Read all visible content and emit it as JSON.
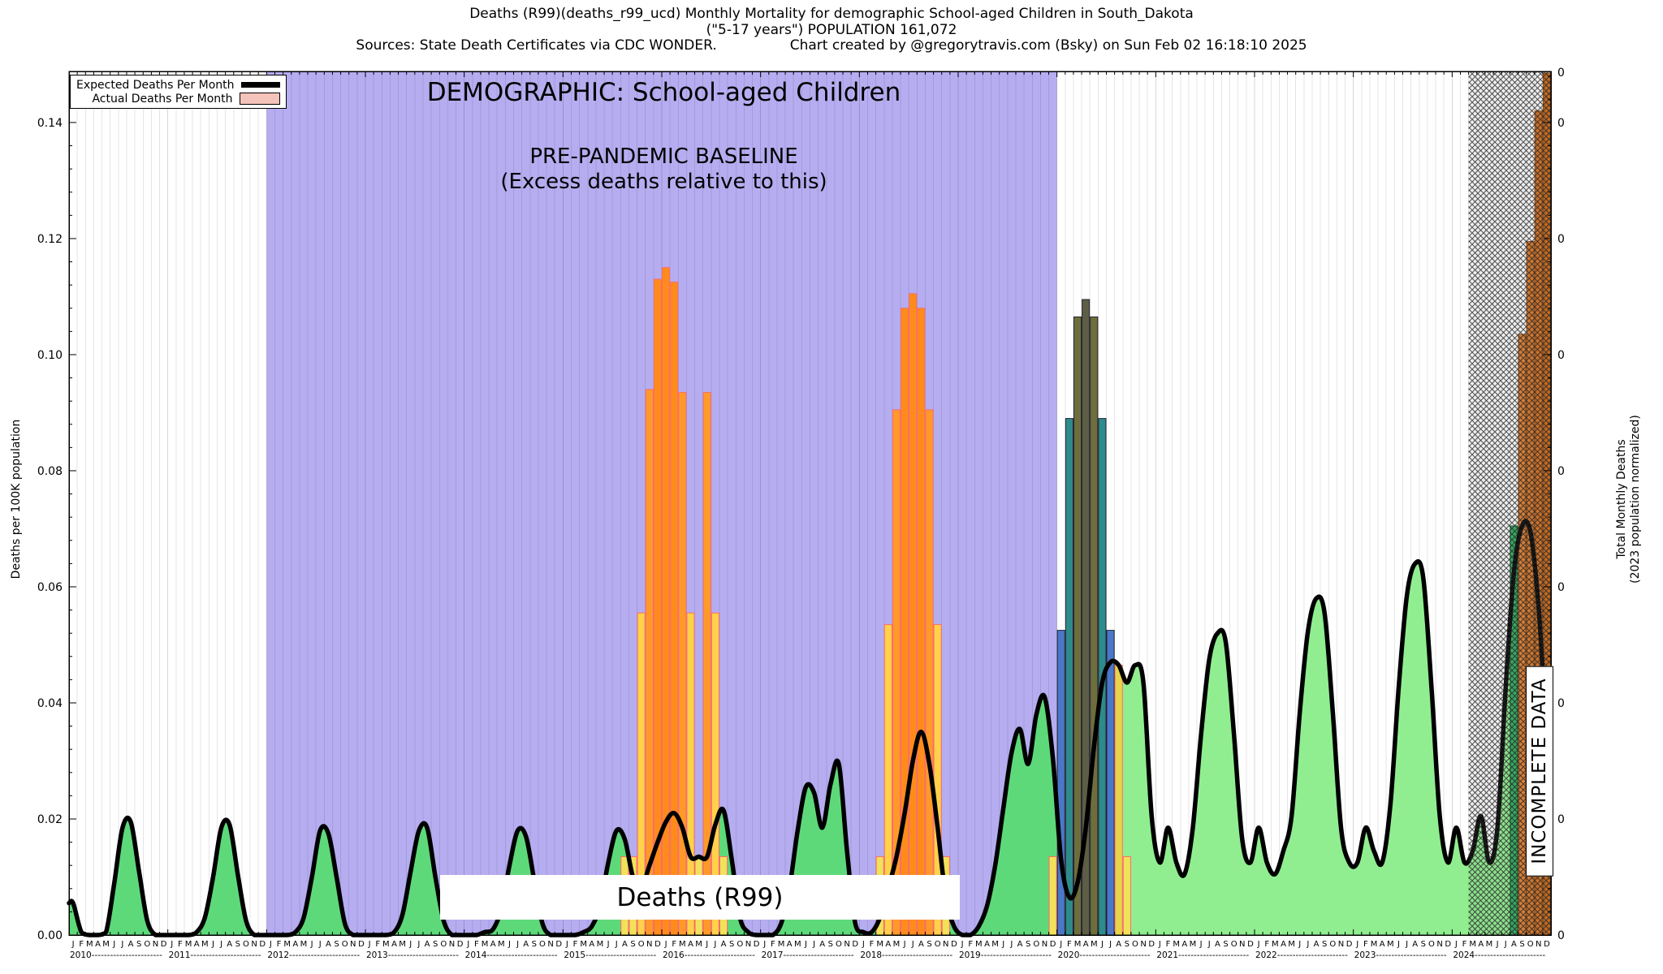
{
  "header": {
    "title_line1": "Deaths (R99)(deaths_r99_ucd) Monthly Mortality for demographic School-aged Children in South_Dakota",
    "title_line2": "(\"5-17 years\") POPULATION 161,072",
    "sources": "Sources: State Death Certificates via CDC WONDER.",
    "credit": "Chart created by @gregorytravis.com (Bsky) on Sun Feb 02 16:18:10 2025"
  },
  "legend": {
    "expected": "Expected Deaths Per Month",
    "actual": "Actual Deaths Per Month"
  },
  "axes": {
    "left_label": "Deaths per 100K population",
    "right_label_line1": "Total Monthly Deaths",
    "right_label_line2": "(2023 population normalized)",
    "left_ticks": [
      "0.00",
      "0.02",
      "0.04",
      "0.06",
      "0.08",
      "0.10",
      "0.12",
      "0.14"
    ],
    "right_tick_label": "0"
  },
  "annotations": {
    "demographic_title": "DEMOGRAPHIC: School-aged Children",
    "baseline_line1": "PRE-PANDEMIC BASELINE",
    "baseline_line2": "(Excess deaths relative to this)",
    "series_label": "Deaths (R99)",
    "incomplete_label": "INCOMPLETE DATA"
  },
  "colors": {
    "baseline_region": "#b6adf1",
    "expected_line": "#000000",
    "green_fill_early": "#5ed97a",
    "green_fill_late": "#90ee90",
    "legend_actual_swatch": "#f4c3ba",
    "bar_default_stroke": "#ff6a6a",
    "grid_minor": "rgba(0,0,0,0.10)",
    "grid_year": "rgba(0,0,0,0.16)"
  },
  "chart_data": {
    "type": "bar+line",
    "title": "Deaths (R99) Monthly Mortality, School-aged Children, South_Dakota",
    "ylabel": "Deaths per 100K population",
    "y_min": 0,
    "y_max": 0.1488,
    "y_ticks": [
      0,
      0.02,
      0.04,
      0.06,
      0.08,
      0.1,
      0.12,
      0.14
    ],
    "x_years": [
      2010,
      2011,
      2012,
      2013,
      2014,
      2015,
      2016,
      2017,
      2018,
      2019,
      2020,
      2021,
      2022,
      2023,
      2024
    ],
    "month_letters": [
      "J",
      "F",
      "M",
      "A",
      "M",
      "J",
      "J",
      "A",
      "S",
      "O",
      "N",
      "D"
    ],
    "baseline_region_months": {
      "start": 24,
      "end": 120
    },
    "incomplete_region_months": {
      "start": 170,
      "end": 180
    },
    "right_axis_all_zero": true,
    "series_names": {
      "line": "Expected Deaths Per Month",
      "bars": "Actual Deaths Per Month"
    },
    "expected_monthly": [
      0.0055,
      0.0005,
      0,
      0,
      0.0005,
      0.009,
      0.0185,
      0.0195,
      0.011,
      0.0025,
      0,
      0,
      0,
      0,
      0,
      0.0005,
      0.003,
      0.01,
      0.0185,
      0.019,
      0.0105,
      0.0025,
      0,
      0,
      0,
      0,
      0,
      0.0005,
      0.003,
      0.01,
      0.018,
      0.0175,
      0.01,
      0.002,
      0,
      0,
      0,
      0,
      0,
      0.0005,
      0.0035,
      0.011,
      0.018,
      0.0185,
      0.01,
      0.0025,
      0,
      0,
      0,
      0,
      0.0005,
      0.001,
      0.0045,
      0.012,
      0.018,
      0.017,
      0.0095,
      0.002,
      0,
      0,
      0,
      0,
      0.0005,
      0.0015,
      0.005,
      0.0125,
      0.018,
      0.0165,
      0.01,
      0.008,
      0.012,
      0.016,
      0.0195,
      0.021,
      0.0185,
      0.0135,
      0.0135,
      0.0135,
      0.019,
      0.0215,
      0.013,
      0.003,
      0.0005,
      0,
      0,
      0,
      0.002,
      0.008,
      0.018,
      0.0255,
      0.0245,
      0.0185,
      0.026,
      0.0295,
      0.0145,
      0.002,
      0.0005,
      0.0005,
      0.003,
      0.008,
      0.0135,
      0.021,
      0.03,
      0.035,
      0.0295,
      0.0185,
      0.0065,
      0.0015,
      0,
      0,
      0.0015,
      0.005,
      0.012,
      0.022,
      0.0315,
      0.0355,
      0.0295,
      0.038,
      0.041,
      0.0305,
      0.013,
      0.0065,
      0.009,
      0.0185,
      0.0325,
      0.0435,
      0.047,
      0.0465,
      0.0435,
      0.0465,
      0.0435,
      0.0205,
      0.0125,
      0.0185,
      0.0125,
      0.0105,
      0.0185,
      0.0345,
      0.0475,
      0.052,
      0.0505,
      0.0345,
      0.0165,
      0.0125,
      0.0185,
      0.0125,
      0.0105,
      0.0145,
      0.0205,
      0.0385,
      0.0525,
      0.058,
      0.0555,
      0.0385,
      0.0185,
      0.0125,
      0.0125,
      0.0185,
      0.0145,
      0.0125,
      0.0225,
      0.0425,
      0.0585,
      0.064,
      0.0615,
      0.0425,
      0.0205,
      0.0125,
      0.0185,
      0.0125,
      0.0145,
      0.0205,
      0.0125,
      0.0185,
      0.0425,
      0.0625,
      0.0705,
      0.0695,
      0.0565,
      0.0345
    ],
    "actual_overrides": [
      {
        "i": 67,
        "v": 0.0135,
        "c": "#f0e25a"
      },
      {
        "i": 68,
        "v": 0.0135,
        "c": "#f0e25a"
      },
      {
        "i": 69,
        "v": 0.0555,
        "c": "#ffd24a"
      },
      {
        "i": 70,
        "v": 0.094,
        "c": "#ff9a2a"
      },
      {
        "i": 71,
        "v": 0.113,
        "c": "#ff8c1a"
      },
      {
        "i": 72,
        "v": 0.115,
        "c": "#ff8c1a"
      },
      {
        "i": 73,
        "v": 0.1125,
        "c": "#ff8c1a"
      },
      {
        "i": 74,
        "v": 0.0935,
        "c": "#ff9a2a"
      },
      {
        "i": 75,
        "v": 0.0555,
        "c": "#ffd24a"
      },
      {
        "i": 76,
        "v": 0.0135,
        "c": "#f0e25a"
      },
      {
        "i": 77,
        "v": 0.0935,
        "c": "#ff9a2a"
      },
      {
        "i": 78,
        "v": 0.0555,
        "c": "#ffd24a"
      },
      {
        "i": 79,
        "v": 0.0135,
        "c": "#f0e25a"
      },
      {
        "i": 98,
        "v": 0.0135,
        "c": "#f0e25a"
      },
      {
        "i": 99,
        "v": 0.0535,
        "c": "#ffd24a"
      },
      {
        "i": 100,
        "v": 0.0905,
        "c": "#ff9a2a"
      },
      {
        "i": 101,
        "v": 0.108,
        "c": "#ff8c1a"
      },
      {
        "i": 102,
        "v": 0.1105,
        "c": "#ff8c1a"
      },
      {
        "i": 103,
        "v": 0.108,
        "c": "#ff8c1a"
      },
      {
        "i": 104,
        "v": 0.0905,
        "c": "#ff9a2a"
      },
      {
        "i": 105,
        "v": 0.0535,
        "c": "#ffd24a"
      },
      {
        "i": 106,
        "v": 0.0135,
        "c": "#f0e25a"
      },
      {
        "i": 119,
        "v": 0.0135,
        "c": "#f0e25a"
      },
      {
        "i": 120,
        "v": 0.0525,
        "c": "#4a78c8",
        "s": "#222233"
      },
      {
        "i": 121,
        "v": 0.089,
        "c": "#2e8b8b",
        "s": "#222233"
      },
      {
        "i": 122,
        "v": 0.1065,
        "c": "#6e6e3c",
        "s": "#222233"
      },
      {
        "i": 123,
        "v": 0.1095,
        "c": "#5e5e46",
        "s": "#222233"
      },
      {
        "i": 124,
        "v": 0.1065,
        "c": "#6e6e3c",
        "s": "#222233"
      },
      {
        "i": 125,
        "v": 0.089,
        "c": "#2e8b8b",
        "s": "#222233"
      },
      {
        "i": 126,
        "v": 0.0525,
        "c": "#4a78c8",
        "s": "#222233"
      },
      {
        "i": 127,
        "v": 0.0465,
        "c": "#e8d44a"
      },
      {
        "i": 128,
        "v": 0.0135,
        "c": "#f0e25a"
      },
      {
        "i": 175,
        "v": 0.0705,
        "c": "#2eac5e",
        "s": "#145a32"
      },
      {
        "i": 176,
        "v": 0.1035,
        "c": "#e08030",
        "s": "#8b4513"
      },
      {
        "i": 177,
        "v": 0.1195,
        "c": "#da7828",
        "s": "#8b4513"
      },
      {
        "i": 178,
        "v": 0.142,
        "c": "#d47020",
        "s": "#8b4513"
      },
      {
        "i": 179,
        "v": 0.1485,
        "c": "#c86818",
        "s": "#8b4513"
      }
    ]
  }
}
